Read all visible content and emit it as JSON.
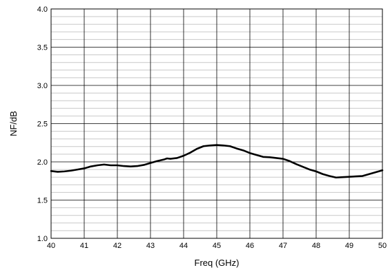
{
  "chart_data": {
    "type": "line",
    "title": "",
    "xlabel": "Freq (GHz)",
    "ylabel": "NF/dB",
    "xlim": [
      40,
      50
    ],
    "ylim": [
      1.0,
      4.0
    ],
    "x_ticks": [
      40,
      41,
      42,
      43,
      44,
      45,
      46,
      47,
      48,
      49,
      50
    ],
    "x_tick_labels": [
      "40",
      "41",
      "42",
      "43",
      "44",
      "45",
      "46",
      "47",
      "48",
      "49",
      "50"
    ],
    "y_ticks": [
      1.0,
      1.5,
      2.0,
      2.5,
      3.0,
      3.5,
      4.0
    ],
    "y_tick_labels": [
      "1.0",
      "1.5",
      "2.0",
      "2.5",
      "3.0",
      "3.5",
      "4.0"
    ],
    "y_minor_step": 0.1,
    "grid": true,
    "colors": {
      "series": "#000000",
      "major_grid": "#000000",
      "minor_grid": "#c8c8c8",
      "frame": "#000000"
    },
    "series": [
      {
        "x": [
          40.0,
          40.2,
          40.4,
          40.6,
          40.8,
          41.0,
          41.2,
          41.4,
          41.6,
          41.8,
          42.0,
          42.2,
          42.4,
          42.6,
          42.8,
          43.0,
          43.2,
          43.4,
          43.5,
          43.6,
          43.8,
          44.0,
          44.2,
          44.4,
          44.6,
          44.8,
          45.0,
          45.2,
          45.4,
          45.6,
          45.8,
          46.0,
          46.2,
          46.4,
          46.6,
          46.8,
          47.0,
          47.2,
          47.4,
          47.6,
          47.8,
          48.0,
          48.2,
          48.4,
          48.6,
          48.8,
          49.0,
          49.2,
          49.4,
          49.6,
          49.8,
          50.0
        ],
        "y": [
          1.88,
          1.87,
          1.875,
          1.885,
          1.9,
          1.915,
          1.94,
          1.955,
          1.965,
          1.955,
          1.955,
          1.945,
          1.94,
          1.945,
          1.96,
          1.985,
          2.01,
          2.03,
          2.045,
          2.04,
          2.05,
          2.08,
          2.12,
          2.17,
          2.205,
          2.215,
          2.22,
          2.215,
          2.205,
          2.175,
          2.15,
          2.115,
          2.09,
          2.065,
          2.06,
          2.05,
          2.04,
          2.01,
          1.97,
          1.935,
          1.9,
          1.875,
          1.84,
          1.815,
          1.795,
          1.8,
          1.805,
          1.81,
          1.815,
          1.84,
          1.865,
          1.89
        ]
      }
    ]
  }
}
